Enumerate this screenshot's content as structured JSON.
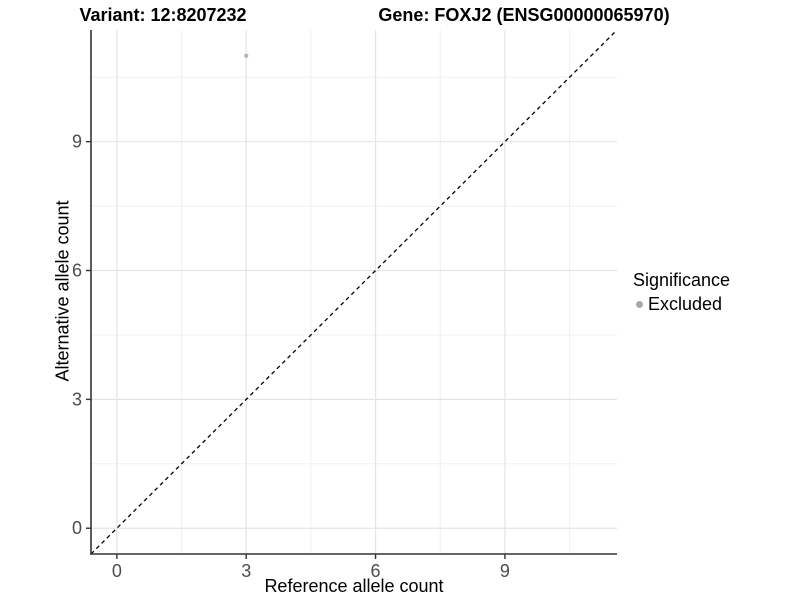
{
  "chart_data": {
    "type": "scatter",
    "titles": {
      "variant": "Variant: 12:8207232",
      "gene": "Gene: FOXJ2 (ENSG00000065970)"
    },
    "xlabel": "Reference allele count",
    "ylabel": "Alternative allele count",
    "xlim": [
      -0.6,
      11.6
    ],
    "ylim": [
      -0.6,
      11.6
    ],
    "x_major_ticks": [
      0,
      3,
      6,
      9
    ],
    "y_major_ticks": [
      0,
      3,
      6,
      9
    ],
    "x_minor_ticks": [
      1.5,
      4.5,
      7.5,
      10.5
    ],
    "y_minor_ticks": [
      1.5,
      4.5,
      7.5,
      10.5
    ],
    "grid": true,
    "identity_line": {
      "equation": "y = x",
      "style": "dashed",
      "color": "#000000"
    },
    "points": [
      {
        "x": 3,
        "y": 11,
        "series": "Excluded",
        "color": "#b5b5b5",
        "radius_px": 2.2
      }
    ],
    "legend": {
      "title": "Significance",
      "position": "right",
      "entries": [
        {
          "label": "Excluded",
          "color": "#a9a9a9"
        }
      ]
    },
    "colors": {
      "grid_major": "#e4e4e4",
      "grid_minor": "#f0f0f0",
      "axis_line": "#333333",
      "tick_mark": "#333333",
      "tick_label": "#4d4d4d",
      "text": "#000000",
      "background": "#ffffff"
    }
  }
}
